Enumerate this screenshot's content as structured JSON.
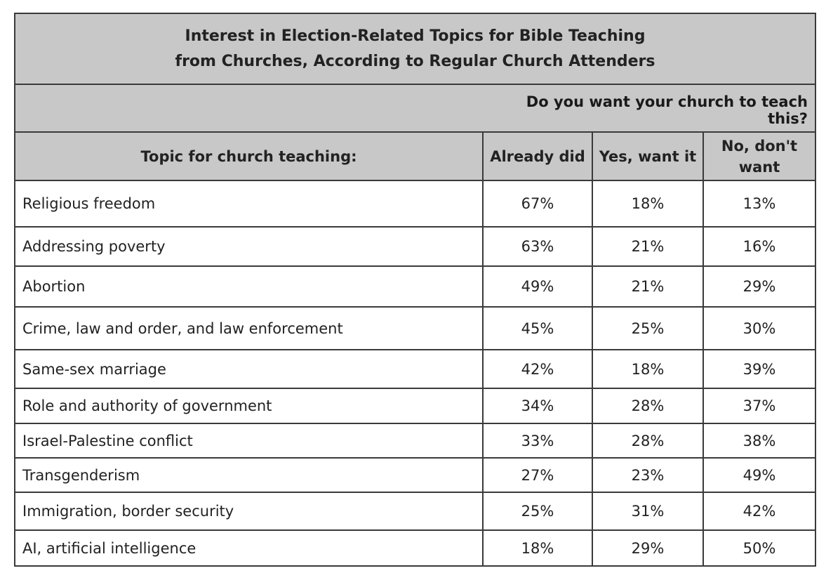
{
  "title_line1": "Interest in Election-Related Topics for Bible Teaching",
  "title_line2": "from Churches, According to Regular Church Attenders",
  "question": "Do you want your church to teach this?",
  "columns": {
    "topic": "Topic for church teaching:",
    "already": "Already did",
    "yes": "Yes, want it",
    "no": "No, don't want"
  },
  "chart_data": {
    "type": "table",
    "title": "Interest in Election-Related Topics for Bible Teaching from Churches, According to Regular Church Attenders",
    "column_group": "Do you want your church to teach this?",
    "headers": [
      "Topic for church teaching:",
      "Already did",
      "Yes, want it",
      "No, don't want"
    ],
    "rows": [
      {
        "topic": "Religious freedom",
        "already": "67%",
        "yes": "18%",
        "no": "13%"
      },
      {
        "topic": "Addressing poverty",
        "already": "63%",
        "yes": "21%",
        "no": "16%"
      },
      {
        "topic": "Abortion",
        "already": "49%",
        "yes": "21%",
        "no": "29%"
      },
      {
        "topic": "Crime, law and order, and law enforcement",
        "already": "45%",
        "yes": "25%",
        "no": "30%"
      },
      {
        "topic": "Same-sex marriage",
        "already": "42%",
        "yes": "18%",
        "no": "39%"
      },
      {
        "topic": "Role and authority of government",
        "already": "34%",
        "yes": "28%",
        "no": "37%"
      },
      {
        "topic": "Israel-Palestine conflict",
        "already": "33%",
        "yes": "28%",
        "no": "38%"
      },
      {
        "topic": "Transgenderism",
        "already": "27%",
        "yes": "23%",
        "no": "49%"
      },
      {
        "topic": "Immigration, border security",
        "already": "25%",
        "yes": "31%",
        "no": "42%"
      },
      {
        "topic": "AI, artificial intelligence",
        "already": "18%",
        "yes": "29%",
        "no": "50%"
      }
    ]
  }
}
